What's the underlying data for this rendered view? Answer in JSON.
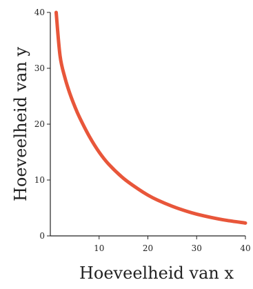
{
  "chart_data": {
    "type": "line",
    "title": "",
    "xlabel": "Hoeveelheid van x",
    "ylabel": "Hoeveelheid van y",
    "xlim": [
      0,
      40
    ],
    "ylim": [
      0,
      40
    ],
    "x_ticks": [
      10,
      20,
      30,
      40
    ],
    "y_ticks": [
      0,
      10,
      20,
      30,
      40
    ],
    "x_tick_labels": [
      "10",
      "20",
      "30",
      "40"
    ],
    "y_tick_labels": [
      "0",
      "10",
      "20",
      "30",
      "40"
    ],
    "grid": false,
    "series": [
      {
        "color": "#e8563a",
        "x": [
          1.2,
          2,
          3,
          4,
          5,
          6,
          8,
          10,
          12,
          15,
          18,
          20,
          22,
          25,
          28,
          30,
          33,
          36,
          40
        ],
        "y": [
          40,
          32.2,
          28.3,
          25.5,
          23.2,
          21.2,
          17.8,
          15.0,
          12.8,
          10.3,
          8.4,
          7.3,
          6.4,
          5.3,
          4.4,
          3.9,
          3.3,
          2.8,
          2.3
        ]
      }
    ]
  }
}
